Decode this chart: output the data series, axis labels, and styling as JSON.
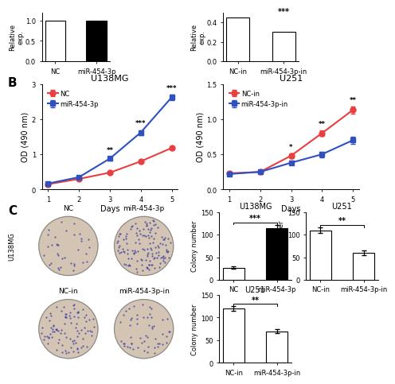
{
  "panel_B_left": {
    "title": "U138MG",
    "xlabel": "Days",
    "ylabel": "OD (490 nm)",
    "days": [
      1,
      2,
      3,
      4,
      5
    ],
    "NC_mean": [
      0.15,
      0.3,
      0.48,
      0.8,
      1.18
    ],
    "NC_err": [
      0.02,
      0.02,
      0.03,
      0.04,
      0.05
    ],
    "mir_mean": [
      0.17,
      0.35,
      0.88,
      1.62,
      2.62
    ],
    "mir_err": [
      0.02,
      0.03,
      0.05,
      0.07,
      0.08
    ],
    "NC_label": "NC",
    "mir_label": "miR-454-3p",
    "ylim": [
      0,
      3.0
    ],
    "yticks": [
      0,
      1,
      2,
      3
    ],
    "sig_labels": [
      "**",
      "***",
      "***"
    ],
    "sig_days": [
      3,
      4,
      5
    ]
  },
  "panel_B_right": {
    "title": "U251",
    "xlabel": "Days",
    "ylabel": "OD (490 nm)",
    "days": [
      1,
      2,
      3,
      4,
      5
    ],
    "NC_mean": [
      0.23,
      0.25,
      0.48,
      0.8,
      1.13
    ],
    "NC_err": [
      0.02,
      0.02,
      0.03,
      0.04,
      0.05
    ],
    "mir_mean": [
      0.22,
      0.25,
      0.38,
      0.5,
      0.7
    ],
    "mir_err": [
      0.02,
      0.02,
      0.03,
      0.04,
      0.05
    ],
    "NC_label": "NC-in",
    "mir_label": "miR-454-3p-in",
    "ylim": [
      0,
      1.5
    ],
    "yticks": [
      0.0,
      0.5,
      1.0,
      1.5
    ],
    "sig_labels": [
      "*",
      "**",
      "**"
    ],
    "sig_days": [
      3,
      4,
      5
    ]
  },
  "panel_C_bar_left": {
    "title": "U138MG",
    "categories": [
      "NC",
      "miR-454-3p"
    ],
    "values": [
      27,
      115
    ],
    "errors": [
      3,
      7
    ],
    "colors": [
      "white",
      "black"
    ],
    "ylabel": "Colony number",
    "ylim": [
      0,
      150
    ],
    "yticks": [
      0,
      50,
      100,
      150
    ],
    "sig_label": "***"
  },
  "panel_C_bar_right": {
    "title": "U251",
    "categories": [
      "NC-in",
      "miR-454-3p-in"
    ],
    "values": [
      110,
      60
    ],
    "errors": [
      6,
      5
    ],
    "colors": [
      "white",
      "white"
    ],
    "ylabel": "Colony number",
    "ylim": [
      0,
      150
    ],
    "yticks": [
      0,
      50,
      100,
      150
    ],
    "sig_label": "**"
  },
  "panel_A_left": {
    "categories": [
      "NC",
      "miR-454-3p"
    ],
    "values": [
      1.0,
      1.0
    ],
    "colors": [
      "white",
      "black"
    ],
    "ylabel": "Relative\nexp.",
    "ylim": [
      0,
      1.2
    ],
    "yticks": [
      0.0,
      0.5,
      1.0
    ]
  },
  "panel_A_right": {
    "categories": [
      "NC-in",
      "miR-454-3p-in"
    ],
    "values": [
      0.45,
      0.3
    ],
    "colors": [
      "white",
      "white"
    ],
    "ylabel": "Relative\nexp.",
    "ylim": [
      0,
      0.5
    ],
    "yticks": [
      0.0,
      0.2,
      0.4
    ],
    "sig_label": "***"
  },
  "red_color": "#E84040",
  "blue_color": "#3050C0",
  "marker_size": 5,
  "line_width": 1.5,
  "font_size": 7,
  "title_font_size": 8
}
